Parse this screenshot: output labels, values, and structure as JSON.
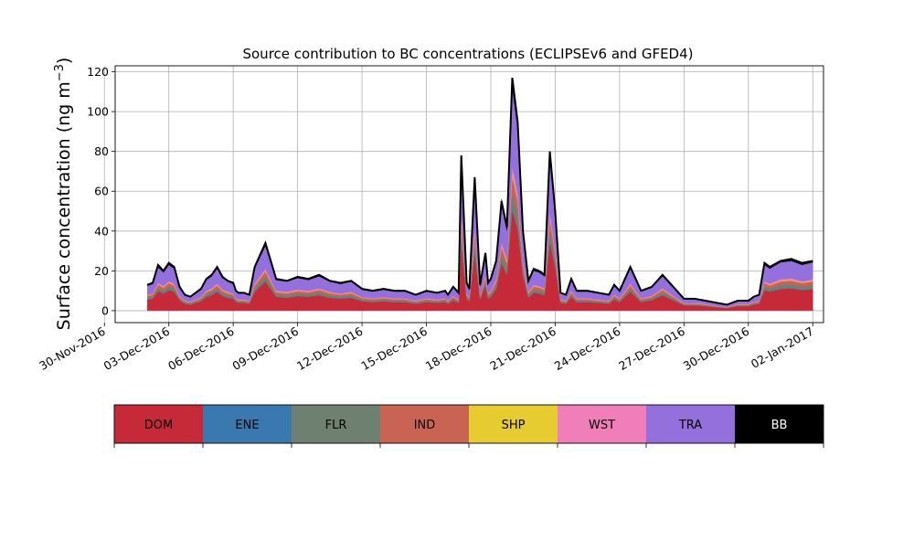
{
  "chart_data": {
    "type": "area",
    "title": "Source contribution to BC concentrations (ECLIPSEv6 and GFED4)",
    "ylabel_main": "Surface concentration (ng m",
    "ylabel_sup": "−3",
    "ylabel_close": ")",
    "xlabel": "",
    "grid": true,
    "ylim": [
      -6,
      123
    ],
    "yticks": [
      0,
      20,
      40,
      60,
      80,
      100,
      120
    ],
    "xlim": [
      "2016-11-30T12:00",
      "2017-01-02T12:00"
    ],
    "xticks": [
      "30-Nov-2016",
      "03-Dec-2016",
      "06-Dec-2016",
      "09-Dec-2016",
      "12-Dec-2016",
      "15-Dec-2016",
      "18-Dec-2016",
      "21-Dec-2016",
      "24-Dec-2016",
      "27-Dec-2016",
      "30-Dec-2016",
      "02-Jan-2017"
    ],
    "x": [
      "2016-12-02T00:00",
      "2016-12-02T06:00",
      "2016-12-02T12:00",
      "2016-12-02T18:00",
      "2016-12-03T00:00",
      "2016-12-03T06:00",
      "2016-12-03T12:00",
      "2016-12-03T18:00",
      "2016-12-04T00:00",
      "2016-12-04T06:00",
      "2016-12-04T12:00",
      "2016-12-04T18:00",
      "2016-12-05T00:00",
      "2016-12-05T06:00",
      "2016-12-05T12:00",
      "2016-12-05T18:00",
      "2016-12-06T00:00",
      "2016-12-06T03:00",
      "2016-12-06T06:00",
      "2016-12-06T12:00",
      "2016-12-06T18:00",
      "2016-12-07T00:00",
      "2016-12-07T12:00",
      "2016-12-08T00:00",
      "2016-12-08T12:00",
      "2016-12-09T00:00",
      "2016-12-09T12:00",
      "2016-12-10T00:00",
      "2016-12-10T12:00",
      "2016-12-11T00:00",
      "2016-12-11T12:00",
      "2016-12-12T00:00",
      "2016-12-12T12:00",
      "2016-12-13T00:00",
      "2016-12-13T12:00",
      "2016-12-14T00:00",
      "2016-12-14T12:00",
      "2016-12-15T00:00",
      "2016-12-15T12:00",
      "2016-12-15T21:00",
      "2016-12-16T00:00",
      "2016-12-16T06:00",
      "2016-12-16T12:00",
      "2016-12-16T15:00",
      "2016-12-16T21:00",
      "2016-12-17T00:00",
      "2016-12-17T06:00",
      "2016-12-17T12:00",
      "2016-12-17T18:00",
      "2016-12-17T21:00",
      "2016-12-18T00:00",
      "2016-12-18T06:00",
      "2016-12-18T12:00",
      "2016-12-18T18:00",
      "2016-12-19T00:00",
      "2016-12-19T06:00",
      "2016-12-19T12:00",
      "2016-12-19T18:00",
      "2016-12-20T00:00",
      "2016-12-20T06:00",
      "2016-12-20T12:00",
      "2016-12-20T18:00",
      "2016-12-21T00:00",
      "2016-12-21T06:00",
      "2016-12-21T12:00",
      "2016-12-21T18:00",
      "2016-12-22T00:00",
      "2016-12-22T12:00",
      "2016-12-23T00:00",
      "2016-12-23T12:00",
      "2016-12-23T18:00",
      "2016-12-24T00:00",
      "2016-12-24T12:00",
      "2016-12-25T00:00",
      "2016-12-25T12:00",
      "2016-12-26T00:00",
      "2016-12-26T12:00",
      "2016-12-27T00:00",
      "2016-12-27T12:00",
      "2016-12-28T00:00",
      "2016-12-28T12:00",
      "2016-12-29T00:00",
      "2016-12-29T12:00",
      "2016-12-30T00:00",
      "2016-12-30T06:00",
      "2016-12-30T12:00",
      "2016-12-30T18:00",
      "2016-12-31T00:00",
      "2016-12-31T12:00",
      "2017-01-01T00:00",
      "2017-01-01T12:00",
      "2017-01-02T00:00"
    ],
    "total": [
      13,
      14,
      23,
      20,
      24,
      22,
      12,
      8,
      7,
      9,
      11,
      16,
      18,
      22,
      17,
      15,
      14,
      10,
      9,
      9,
      8,
      22,
      34,
      16,
      15,
      17,
      16,
      18,
      15,
      14,
      15,
      11,
      10,
      11,
      10,
      10,
      8,
      10,
      9,
      10,
      8,
      12,
      9,
      78,
      14,
      11,
      67,
      13,
      29,
      14,
      16,
      25,
      55,
      42,
      117,
      95,
      40,
      15,
      21,
      20,
      18,
      80,
      50,
      9,
      8,
      16,
      10,
      10,
      9,
      8,
      13,
      10,
      22,
      10,
      12,
      18,
      12,
      6,
      6,
      5,
      4,
      3,
      5,
      5,
      7,
      8,
      24,
      22,
      25,
      26,
      24,
      25
    ],
    "series": [
      {
        "name": "DOM",
        "values": [
          5.6,
          6,
          9.7,
          8.6,
          10.3,
          9.5,
          5.2,
          3.4,
          3,
          3.9,
          4.7,
          6.9,
          7.7,
          9.5,
          7.3,
          6.4,
          6,
          4.3,
          3.9,
          3.9,
          3.4,
          9.5,
          14.6,
          6.9,
          6.4,
          7.3,
          6.9,
          7.7,
          6.4,
          6,
          6.4,
          4.7,
          4.3,
          4.7,
          4.3,
          4.3,
          3.4,
          4.3,
          3.9,
          4.3,
          3.4,
          5.2,
          3.9,
          33.5,
          6,
          4.7,
          28.8,
          5.6,
          12.5,
          6,
          6.9,
          10.8,
          23.7,
          18,
          50.3,
          40.9,
          17.2,
          6.4,
          9,
          8.6,
          7.7,
          34.4,
          21.5,
          3.9,
          3.4,
          6.9,
          4.3,
          4.3,
          3.9,
          3.4,
          5.6,
          4.3,
          9.5,
          4.3,
          5.2,
          7.7,
          5.2,
          2.6,
          2.6,
          2.2,
          1.7,
          1.3,
          2.2,
          2.2,
          3,
          3.4,
          10.3,
          9.5,
          10.8,
          11.2,
          10.3,
          10.8
        ]
      },
      {
        "name": "ENE",
        "values": [
          0.1,
          0.1,
          0.2,
          0.2,
          0.2,
          0.2,
          0.1,
          0.1,
          0.1,
          0.1,
          0.1,
          0.2,
          0.2,
          0.2,
          0.2,
          0.2,
          0.1,
          0.1,
          0.1,
          0.1,
          0.1,
          0.2,
          0.3,
          0.2,
          0.2,
          0.2,
          0.2,
          0.2,
          0.2,
          0.1,
          0.2,
          0.1,
          0.1,
          0.1,
          0.1,
          0.1,
          0.1,
          0.1,
          0.1,
          0.1,
          0.1,
          0.1,
          0.1,
          0.8,
          0.1,
          0.1,
          0.7,
          0.1,
          0.3,
          0.1,
          0.2,
          0.3,
          0.6,
          0.4,
          1.2,
          1,
          0.4,
          0.2,
          0.2,
          0.2,
          0.2,
          0.8,
          0.5,
          0.1,
          0.1,
          0.2,
          0.1,
          0.1,
          0.1,
          0.1,
          0.1,
          0.1,
          0.2,
          0.1,
          0.1,
          0.2,
          0.1,
          0.1,
          0.1,
          0.1,
          0,
          0,
          0.1,
          0.1,
          0.1,
          0.1,
          0.2,
          0.2,
          0.3,
          0.3,
          0.2,
          0.3
        ]
      },
      {
        "name": "FLR",
        "values": [
          0.9,
          1,
          1.6,
          1.4,
          1.7,
          1.5,
          0.8,
          0.6,
          0.5,
          0.6,
          0.8,
          1.1,
          1.3,
          1.5,
          1.2,
          1.1,
          1,
          0.7,
          0.6,
          0.6,
          0.6,
          1.5,
          2.4,
          1.1,
          1.1,
          1.2,
          1.1,
          1.3,
          1.1,
          1,
          1.1,
          0.8,
          0.7,
          0.8,
          0.7,
          0.7,
          0.6,
          0.7,
          0.6,
          0.7,
          0.6,
          0.8,
          0.6,
          5.5,
          1,
          0.8,
          4.7,
          0.9,
          2,
          1,
          1.1,
          1.8,
          3.9,
          2.9,
          8.2,
          6.7,
          2.8,
          1.1,
          1.5,
          1.4,
          1.3,
          5.6,
          3.5,
          0.6,
          0.6,
          1.1,
          0.7,
          0.7,
          0.6,
          0.6,
          0.9,
          0.7,
          1.5,
          0.7,
          0.8,
          1.3,
          0.8,
          0.4,
          0.4,
          0.4,
          0.3,
          0.2,
          0.4,
          0.4,
          0.5,
          0.6,
          1.7,
          1.5,
          1.8,
          1.8,
          1.7,
          1.8
        ]
      },
      {
        "name": "IND",
        "values": [
          0.9,
          1,
          1.6,
          1.4,
          1.7,
          1.5,
          0.8,
          0.6,
          0.5,
          0.6,
          0.8,
          1.1,
          1.3,
          1.5,
          1.2,
          1.1,
          1,
          0.7,
          0.6,
          0.6,
          0.6,
          1.5,
          2.4,
          1.1,
          1.1,
          1.2,
          1.1,
          1.3,
          1.1,
          1,
          1.1,
          0.8,
          0.7,
          0.8,
          0.7,
          0.7,
          0.6,
          0.7,
          0.6,
          0.7,
          0.6,
          0.8,
          0.6,
          5.5,
          1,
          0.8,
          4.7,
          0.9,
          2,
          1,
          1.1,
          1.8,
          3.9,
          2.9,
          8.2,
          6.7,
          2.8,
          1.1,
          1.5,
          1.4,
          1.3,
          5.6,
          3.5,
          0.6,
          0.6,
          1.1,
          0.7,
          0.7,
          0.6,
          0.6,
          0.9,
          0.7,
          1.5,
          0.7,
          0.8,
          1.3,
          0.8,
          0.4,
          0.4,
          0.4,
          0.3,
          0.2,
          0.4,
          0.4,
          0.5,
          0.6,
          1.7,
          1.5,
          1.8,
          1.8,
          1.7,
          1.8
        ]
      },
      {
        "name": "SHP",
        "values": [
          0.1,
          0.1,
          0.2,
          0.2,
          0.2,
          0.2,
          0.1,
          0.1,
          0.1,
          0.1,
          0.1,
          0.2,
          0.2,
          0.2,
          0.2,
          0.2,
          0.1,
          0.1,
          0.1,
          0.1,
          0.1,
          0.2,
          0.3,
          0.2,
          0.2,
          0.2,
          0.2,
          0.2,
          0.2,
          0.1,
          0.2,
          0.1,
          0.1,
          0.1,
          0.1,
          0.1,
          0.1,
          0.1,
          0.1,
          0.1,
          0.1,
          0.1,
          0.1,
          0.8,
          0.1,
          0.1,
          0.7,
          0.1,
          0.3,
          0.1,
          0.2,
          0.3,
          0.6,
          0.4,
          1.2,
          1,
          0.4,
          0.2,
          0.2,
          0.2,
          0.2,
          0.8,
          0.5,
          0.1,
          0.1,
          0.2,
          0.1,
          0.1,
          0.1,
          0.1,
          0.1,
          0.1,
          0.2,
          0.1,
          0.1,
          0.2,
          0.1,
          0.1,
          0.1,
          0.1,
          0,
          0,
          0.1,
          0.1,
          0.1,
          0.1,
          0.2,
          0.2,
          0.3,
          0.3,
          0.2,
          0.3
        ]
      },
      {
        "name": "WST",
        "values": [
          0.4,
          0.4,
          0.7,
          0.6,
          0.7,
          0.7,
          0.4,
          0.2,
          0.2,
          0.3,
          0.3,
          0.5,
          0.5,
          0.7,
          0.5,
          0.5,
          0.4,
          0.3,
          0.3,
          0.3,
          0.2,
          0.7,
          1,
          0.5,
          0.5,
          0.5,
          0.5,
          0.5,
          0.5,
          0.4,
          0.5,
          0.3,
          0.3,
          0.3,
          0.3,
          0.3,
          0.2,
          0.3,
          0.3,
          0.3,
          0.2,
          0.4,
          0.3,
          2.3,
          0.4,
          0.3,
          2,
          0.4,
          0.9,
          0.4,
          0.5,
          0.8,
          1.7,
          1.3,
          3.5,
          2.9,
          1.2,
          0.5,
          0.6,
          0.6,
          0.5,
          2.4,
          1.5,
          0.3,
          0.2,
          0.5,
          0.3,
          0.3,
          0.3,
          0.2,
          0.4,
          0.3,
          0.7,
          0.3,
          0.4,
          0.5,
          0.4,
          0.2,
          0.2,
          0.2,
          0.1,
          0.1,
          0.2,
          0.2,
          0.2,
          0.2,
          0.7,
          0.7,
          0.8,
          0.8,
          0.7,
          0.8
        ]
      },
      {
        "name": "TRA",
        "values": [
          4.5,
          4.8,
          7.8,
          6.8,
          8.2,
          7.5,
          4.1,
          2.7,
          2.4,
          3.1,
          3.7,
          5.4,
          6.1,
          7.5,
          5.8,
          5.1,
          4.8,
          3.4,
          3.1,
          3.1,
          2.7,
          7.5,
          11.6,
          5.4,
          5.1,
          5.8,
          5.4,
          6.1,
          5.1,
          4.8,
          5.1,
          3.7,
          3.4,
          3.7,
          3.4,
          3.4,
          2.7,
          3.4,
          3.1,
          3.4,
          2.7,
          4.1,
          3.1,
          26.5,
          4.8,
          3.7,
          22.8,
          4.4,
          9.9,
          4.8,
          5.4,
          8.5,
          18.7,
          14.3,
          39.8,
          32.3,
          13.6,
          5.1,
          7.1,
          6.8,
          6.1,
          27.2,
          17,
          3.1,
          2.7,
          5.4,
          3.4,
          3.4,
          3.1,
          2.7,
          4.4,
          3.4,
          7.5,
          3.4,
          4.1,
          6.1,
          4.1,
          2,
          2,
          1.7,
          1.4,
          1,
          1.7,
          1.7,
          2.4,
          2.7,
          8.2,
          7.5,
          8.5,
          8.8,
          8.2,
          8.5
        ]
      },
      {
        "name": "BB",
        "values": [
          0.5,
          0.6,
          1.2,
          0.8,
          1,
          0.9,
          0.5,
          0.3,
          0.2,
          0.3,
          0.5,
          0.6,
          0.7,
          0.9,
          0.4,
          0.4,
          0.6,
          0.4,
          0.4,
          0.4,
          0.3,
          0.9,
          1.4,
          0.6,
          0.5,
          0.6,
          0.6,
          0.7,
          0.4,
          0.6,
          0.4,
          0.4,
          0.4,
          0.5,
          0.4,
          0.4,
          0.3,
          0.4,
          0.3,
          0.4,
          0.3,
          0.5,
          0.3,
          3.1,
          0.6,
          0.5,
          2.7,
          0.6,
          1.1,
          0.6,
          0.6,
          0.7,
          2.9,
          1.8,
          4.6,
          3.5,
          1.6,
          0.4,
          0.9,
          0.8,
          0.7,
          3.2,
          3.5,
          0.3,
          0.3,
          0.6,
          0.3,
          0.3,
          0.3,
          0.3,
          0.6,
          0.3,
          0.9,
          0.4,
          0.5,
          0.7,
          0.5,
          0.2,
          0.2,
          0.1,
          0.2,
          0.2,
          0.1,
          0,
          0.2,
          0.3,
          0.8,
          0.9,
          0.7,
          1,
          1,
          0.5
        ]
      }
    ],
    "colors": [
      "#c62a38",
      "#3a78b0",
      "#6e8070",
      "#c96455",
      "#e6cc30",
      "#f07eb8",
      "#9370db",
      "#000000"
    ],
    "legend_placement": "bottom"
  }
}
